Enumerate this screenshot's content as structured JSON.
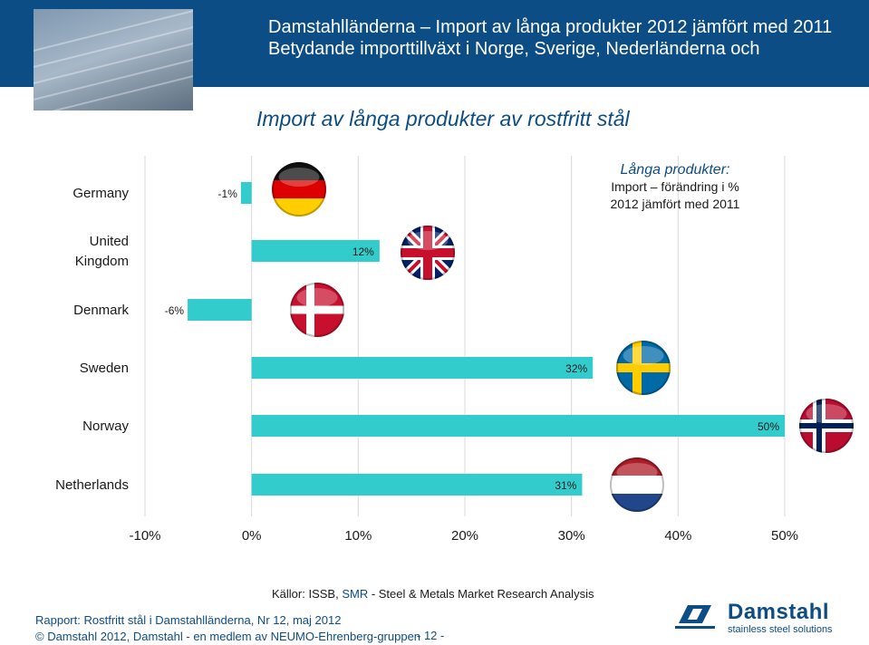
{
  "header": {
    "title_line1": "Damstahlländerna – Import av långa produkter 2012 jämfört med 2011",
    "title_line2": "Betydande importtillväxt i Norge, Sverige, Nederländerna och"
  },
  "slide_title": "Import av långa produkter av rostfritt stål",
  "annotation": {
    "title": "Långa produkter:",
    "line1": "Import – förändring i %",
    "line2": "2012 jämfört med 2011"
  },
  "chart_data": {
    "type": "bar",
    "orientation": "horizontal",
    "categories": [
      "Germany",
      "United Kingdom",
      "Denmark",
      "Sweden",
      "Norway",
      "Netherlands"
    ],
    "values": [
      -1,
      12,
      -6,
      32,
      50,
      31
    ],
    "value_labels": [
      "-1%",
      "12%",
      "-6%",
      "32%",
      "50%",
      "31%"
    ],
    "x_ticks": [
      -10,
      0,
      10,
      20,
      30,
      40,
      50
    ],
    "x_tick_labels": [
      "-10%",
      "0%",
      "10%",
      "20%",
      "30%",
      "40%",
      "50%"
    ],
    "xlim": [
      -10,
      50
    ],
    "grid": true,
    "bar_color": "#33cccc",
    "flags": [
      "germany-flag-icon",
      "uk-flag-icon",
      "denmark-flag-icon",
      "sweden-flag-icon",
      "norway-flag-icon",
      "netherlands-flag-icon"
    ]
  },
  "source": {
    "prefix": "Källor: ISSB, ",
    "smr": "SMR",
    "rest": " - Steel & Metals Market Research Analysis"
  },
  "footer": {
    "line1": "Rapport: Rostfritt stål i Damstahlländerna, Nr 12, maj 2012",
    "line2": "© Damstahl 2012, Damstahl - en medlem av NEUMO-Ehrenberg-gruppen",
    "page": "- 12 -"
  },
  "logo": {
    "word": "Damstahl",
    "sub": "stainless steel solutions"
  },
  "colors": {
    "brand_blue": "#0d4d86",
    "bar": "#33cccc"
  }
}
